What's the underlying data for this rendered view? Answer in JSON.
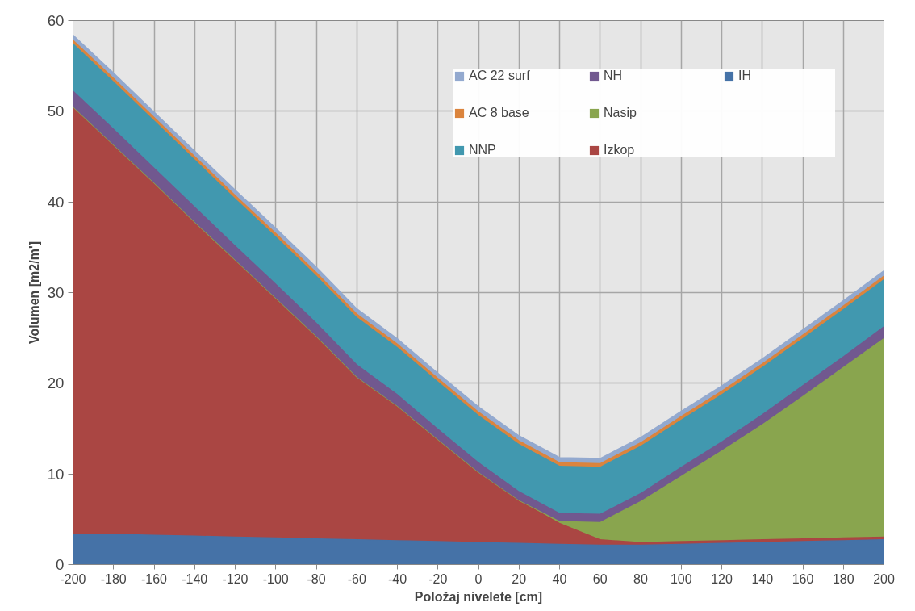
{
  "chart_data": {
    "type": "area",
    "stacked": true,
    "xlabel": "Položaj nivelete [cm]",
    "ylabel": "Volumen [m2/m']",
    "categories": [
      "-200",
      "-180",
      "-160",
      "-140",
      "-120",
      "-100",
      "-80",
      "-60",
      "-40",
      "-20",
      "0",
      "20",
      "40",
      "60",
      "80",
      "100",
      "120",
      "140",
      "160",
      "180",
      "200"
    ],
    "ylim": [
      0,
      60
    ],
    "yticks": [
      0,
      10,
      20,
      30,
      40,
      50,
      60
    ],
    "grid": true,
    "legend": "top right",
    "series": [
      {
        "name": "IH",
        "color": "#4572a7",
        "values": [
          3.4,
          3.4,
          3.3,
          3.2,
          3.1,
          3.0,
          2.9,
          2.8,
          2.7,
          2.6,
          2.5,
          2.4,
          2.3,
          2.2,
          2.2,
          2.3,
          2.4,
          2.5,
          2.6,
          2.7,
          2.8
        ]
      },
      {
        "name": "Izkop",
        "color": "#aa4643",
        "values": [
          47.1,
          42.9,
          38.8,
          34.6,
          30.5,
          26.4,
          22.3,
          17.9,
          14.8,
          11.2,
          7.7,
          4.7,
          2.3,
          0.6,
          0.3,
          0.3,
          0.3,
          0.3,
          0.3,
          0.3,
          0.3
        ]
      },
      {
        "name": "Nasip",
        "color": "#89a54e",
        "values": [
          0,
          0,
          0,
          0,
          0,
          0,
          0,
          0,
          0,
          0,
          0,
          0,
          0.2,
          1.9,
          4.5,
          7.2,
          9.9,
          12.7,
          15.7,
          18.8,
          21.9
        ]
      },
      {
        "name": "NH",
        "color": "#71588f",
        "values": [
          1.8,
          1.8,
          1.7,
          1.7,
          1.6,
          1.6,
          1.5,
          1.4,
          1.3,
          1.2,
          1.1,
          1.0,
          0.9,
          0.9,
          0.9,
          1.0,
          1.0,
          1.1,
          1.2,
          1.2,
          1.3
        ]
      },
      {
        "name": "NNP",
        "color": "#4198af",
        "values": [
          5.2,
          5.2,
          5.2,
          5.2,
          5.2,
          5.2,
          5.2,
          5.2,
          5.2,
          5.2,
          5.2,
          5.2,
          5.2,
          5.2,
          5.2,
          5.2,
          5.2,
          5.2,
          5.2,
          5.2,
          5.2
        ]
      },
      {
        "name": "AC 8 base",
        "color": "#db843d",
        "values": [
          0.4,
          0.4,
          0.4,
          0.4,
          0.4,
          0.4,
          0.4,
          0.4,
          0.4,
          0.4,
          0.4,
          0.4,
          0.4,
          0.4,
          0.4,
          0.4,
          0.4,
          0.4,
          0.4,
          0.4,
          0.4
        ]
      },
      {
        "name": "AC 22 surf",
        "color": "#93a9cf",
        "values": [
          0.5,
          0.5,
          0.5,
          0.5,
          0.5,
          0.5,
          0.5,
          0.5,
          0.5,
          0.5,
          0.5,
          0.5,
          0.5,
          0.5,
          0.5,
          0.5,
          0.5,
          0.5,
          0.5,
          0.5,
          0.5
        ]
      }
    ]
  }
}
